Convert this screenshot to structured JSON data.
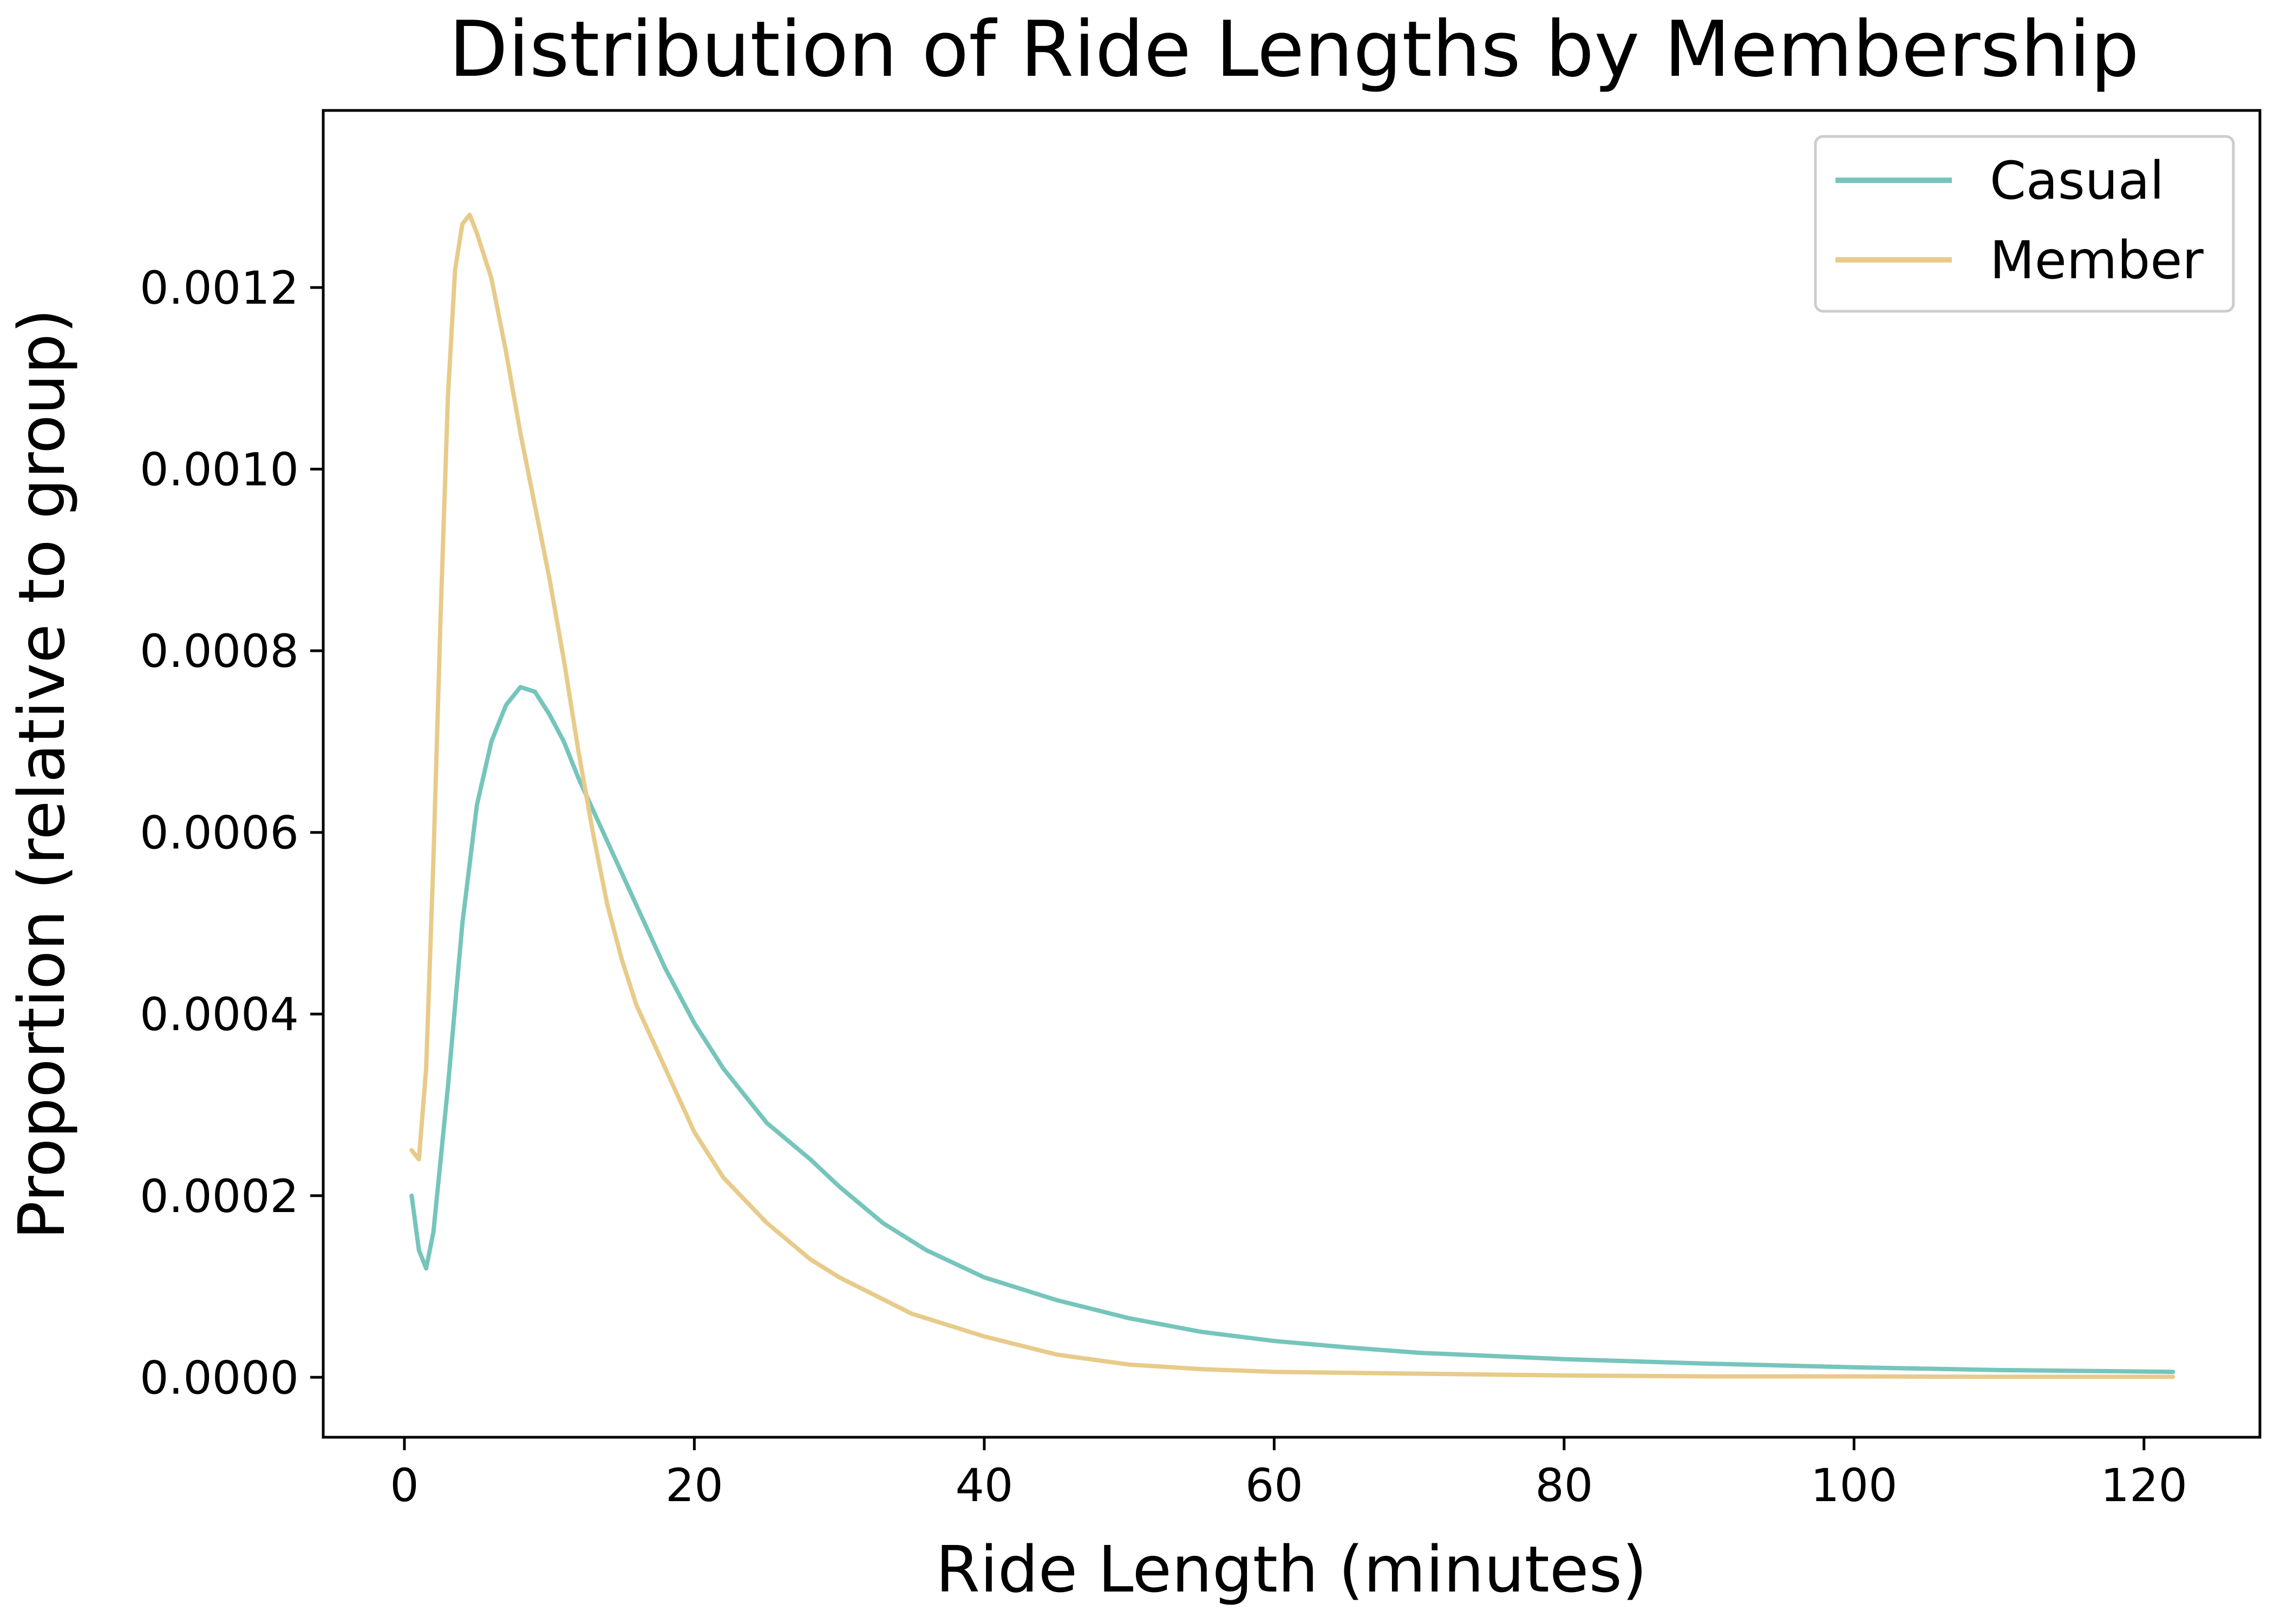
{
  "chart_data": {
    "type": "line",
    "title": "Distribution of Ride Lengths by Membership",
    "xlabel": "Ride Length (minutes)",
    "ylabel": "Proportion (relative to group)",
    "xlim": [
      -5.6,
      128
    ],
    "ylim": [
      -6.6e-05,
      0.001395
    ],
    "xticks": [
      0,
      20,
      40,
      60,
      80,
      100,
      120
    ],
    "xtick_labels": [
      "0",
      "20",
      "40",
      "60",
      "80",
      "100",
      "120"
    ],
    "yticks": [
      0,
      0.0002,
      0.0004,
      0.0006,
      0.0008,
      0.001,
      0.0012
    ],
    "ytick_labels": [
      "0.0000",
      "0.0002",
      "0.0004",
      "0.0006",
      "0.0008",
      "0.0010",
      "0.0012"
    ],
    "grid": false,
    "legend_position": "top-right",
    "series": [
      {
        "name": "Casual",
        "color": "#76c5bc",
        "x": [
          0.5,
          1.0,
          1.5,
          2.0,
          3.0,
          4.0,
          5.0,
          6.0,
          7.0,
          8.0,
          9.0,
          10.0,
          11.0,
          12.0,
          14.0,
          16.0,
          18.0,
          20.0,
          22.0,
          25.0,
          28.0,
          30.0,
          33.0,
          36.0,
          40.0,
          45.0,
          50.0,
          55.0,
          60.0,
          65.0,
          70.0,
          80.0,
          90.0,
          100.0,
          110.0,
          122.0
        ],
        "y": [
          0.0002,
          0.00014,
          0.00012,
          0.00016,
          0.00032,
          0.0005,
          0.00063,
          0.0007,
          0.00074,
          0.00076,
          0.000755,
          0.00073,
          0.0007,
          0.00066,
          0.00059,
          0.00052,
          0.00045,
          0.00039,
          0.00034,
          0.00028,
          0.00024,
          0.00021,
          0.00017,
          0.00014,
          0.00011,
          8.5e-05,
          6.5e-05,
          5e-05,
          4e-05,
          3.3e-05,
          2.7e-05,
          2e-05,
          1.5e-05,
          1.1e-05,
          8e-06,
          6e-06
        ]
      },
      {
        "name": "Member",
        "color": "#e8cb8a",
        "x": [
          0.5,
          1.0,
          1.5,
          2.0,
          2.5,
          3.0,
          3.5,
          4.0,
          4.5,
          5.0,
          6.0,
          7.0,
          8.0,
          9.0,
          10.0,
          11.0,
          12.0,
          13.0,
          14.0,
          15.0,
          16.0,
          18.0,
          20.0,
          22.0,
          25.0,
          28.0,
          30.0,
          35.0,
          40.0,
          45.0,
          50.0,
          55.0,
          60.0,
          70.0,
          80.0,
          90.0,
          100.0,
          110.0,
          122.0
        ],
        "y": [
          0.00025,
          0.00024,
          0.00034,
          0.00057,
          0.00084,
          0.00108,
          0.00122,
          0.00127,
          0.00128,
          0.00126,
          0.00121,
          0.00113,
          0.00104,
          0.00096,
          0.00088,
          0.00079,
          0.00069,
          0.0006,
          0.00052,
          0.00046,
          0.00041,
          0.00034,
          0.00027,
          0.00022,
          0.00017,
          0.00013,
          0.00011,
          7e-05,
          4.5e-05,
          2.5e-05,
          1.4e-05,
          9e-06,
          6e-06,
          4e-06,
          2e-06,
          1e-06,
          1e-06,
          5e-07,
          5e-07
        ]
      }
    ]
  }
}
